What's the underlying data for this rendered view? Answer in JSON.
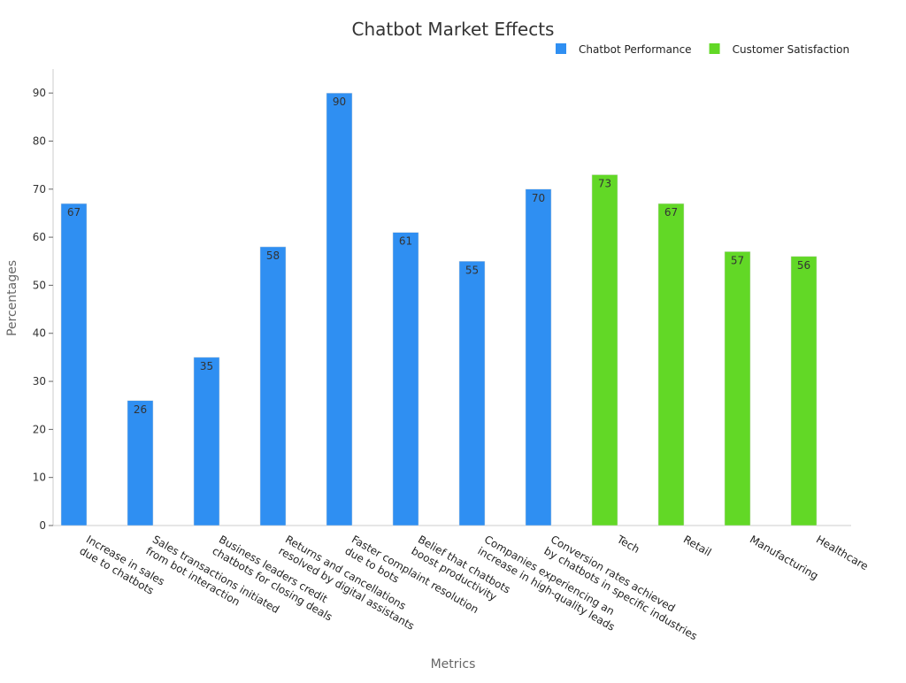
{
  "chart_data": {
    "type": "bar",
    "title": "Chatbot Market Effects",
    "x_label": "Metrics",
    "y_label": "Percentages",
    "categories": [
      [
        "Increase in sales",
        "due to chatbots"
      ],
      [
        "Sales transactions initiated",
        "from bot interaction"
      ],
      [
        "Business leaders credit",
        "chatbots for closing deals"
      ],
      [
        "Returns and cancellations",
        "resolved by digital assistants"
      ],
      [
        "Faster complaint resolution",
        "due to bots"
      ],
      [
        "Belief that chatbots",
        "boost productivity"
      ],
      [
        "Companies experiencing an",
        "increase in high-quality leads"
      ],
      [
        "Conversion rates achieved",
        "by chatbots in specific industries"
      ],
      [
        "Tech"
      ],
      [
        "Retail"
      ],
      [
        "Manufacturing"
      ],
      [
        "Healthcare"
      ]
    ],
    "series": [
      {
        "name": "Chatbot Performance",
        "color": "#2f8ff2",
        "values": [
          67,
          26,
          35,
          58,
          90,
          61,
          55,
          70,
          null,
          null,
          null,
          null
        ]
      },
      {
        "name": "Customer Satisfaction",
        "color": "#62d826",
        "values": [
          null,
          null,
          null,
          null,
          null,
          null,
          null,
          null,
          73,
          67,
          57,
          56
        ]
      }
    ],
    "ylim": [
      0,
      95
    ],
    "yticks": [
      0,
      10,
      20,
      30,
      40,
      50,
      60,
      70,
      80,
      90
    ],
    "legend": "top-right"
  }
}
